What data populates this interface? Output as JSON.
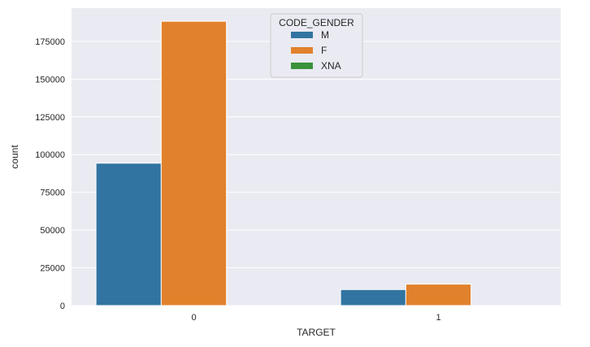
{
  "chart_data": {
    "type": "bar",
    "categories": [
      "0",
      "1"
    ],
    "series": [
      {
        "name": "M",
        "values": [
          94300,
          10600
        ],
        "color": "#3274a1"
      },
      {
        "name": "F",
        "values": [
          188300,
          14200
        ],
        "color": "#e1812c"
      },
      {
        "name": "XNA",
        "values": [
          4,
          0
        ],
        "color": "#3a923a"
      }
    ],
    "xlabel": "TARGET",
    "ylabel": "count",
    "ylim": [
      0,
      197000
    ],
    "yticks": [
      0,
      25000,
      50000,
      75000,
      100000,
      125000,
      150000,
      175000
    ],
    "ytick_labels": [
      "0",
      "25000",
      "50000",
      "75000",
      "100000",
      "125000",
      "150000",
      "175000"
    ],
    "legend_title": "CODE_GENDER",
    "legend_position": "top-center",
    "grid": true,
    "background": "#eaeaf2",
    "style": "seaborn-darkgrid"
  }
}
